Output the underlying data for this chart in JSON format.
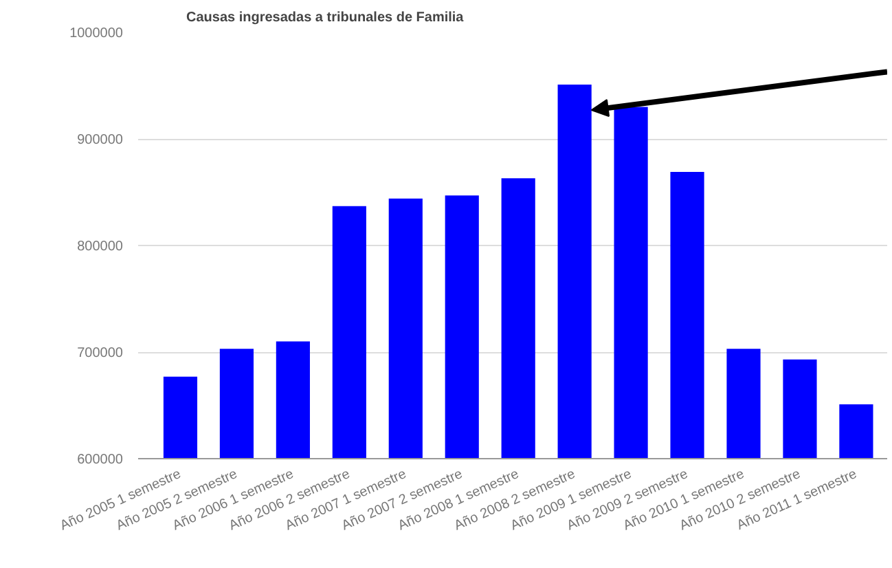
{
  "chart_data": {
    "type": "bar",
    "title": "Causas ingresadas a tribunales de Familia",
    "categories": [
      "Año 2005 1 semestre",
      "Año 2005 2 semestre",
      "Año 2006 1 semestre",
      "Año 2006 2 semestre",
      "Año 2007 1 semestre",
      "Año 2007 2 semestre",
      "Año 2008 1 semestre",
      "Año 2008 2 semestre",
      "Año 2009 1 semestre",
      "Año 2009 2 semestre",
      "Año 2010 1 semestre",
      "Año 2010 2 semestre",
      "Año 2011 1 semestre"
    ],
    "values": [
      677000,
      703000,
      710000,
      837000,
      844000,
      847000,
      863000,
      951000,
      930000,
      869000,
      703000,
      693000,
      651000
    ],
    "color": "#0000ff",
    "ylim": [
      600000,
      1000000
    ],
    "yticks": [
      600000,
      700000,
      800000,
      900000,
      1000000
    ],
    "grid": "y"
  }
}
